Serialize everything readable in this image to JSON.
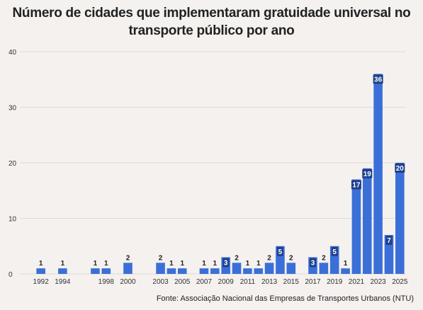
{
  "title_line1": "Número de cidades que implementaram gratuidade universal no",
  "title_line2": "transporte público por ano",
  "source": "Fonte: Associação Nacional das Empresas de Transportes Urbanos (NTU)",
  "chart_data": {
    "type": "bar",
    "title": "Número de cidades que implementaram gratuidade universal no transporte público por ano",
    "xlabel": "",
    "ylabel": "",
    "ylim": [
      0,
      40
    ],
    "yticks": [
      0,
      10,
      20,
      30,
      40
    ],
    "grid": true,
    "bar_color": "#3b6fd8",
    "categories": [
      "1992",
      "1993",
      "1994",
      "1995",
      "1996",
      "1997",
      "1998",
      "1999",
      "2000",
      "2001",
      "2002",
      "2003",
      "2004",
      "2005",
      "2006",
      "2007",
      "2008",
      "2009",
      "2010",
      "2011",
      "2012",
      "2013",
      "2014",
      "2015",
      "2016",
      "2017",
      "2018",
      "2019",
      "2020",
      "2021",
      "2022",
      "2023",
      "2024",
      "2025"
    ],
    "values": [
      1,
      0,
      1,
      0,
      0,
      1,
      1,
      0,
      2,
      0,
      0,
      2,
      1,
      1,
      0,
      1,
      1,
      3,
      2,
      1,
      1,
      2,
      5,
      2,
      0,
      3,
      2,
      5,
      1,
      17,
      19,
      36,
      7,
      20
    ],
    "xtick_labels": [
      "1992",
      "1994",
      "1998",
      "2000",
      "2003",
      "2005",
      "2007",
      "2009",
      "2011",
      "2013",
      "2015",
      "2017",
      "2019",
      "2021",
      "2023",
      "2025"
    ]
  }
}
